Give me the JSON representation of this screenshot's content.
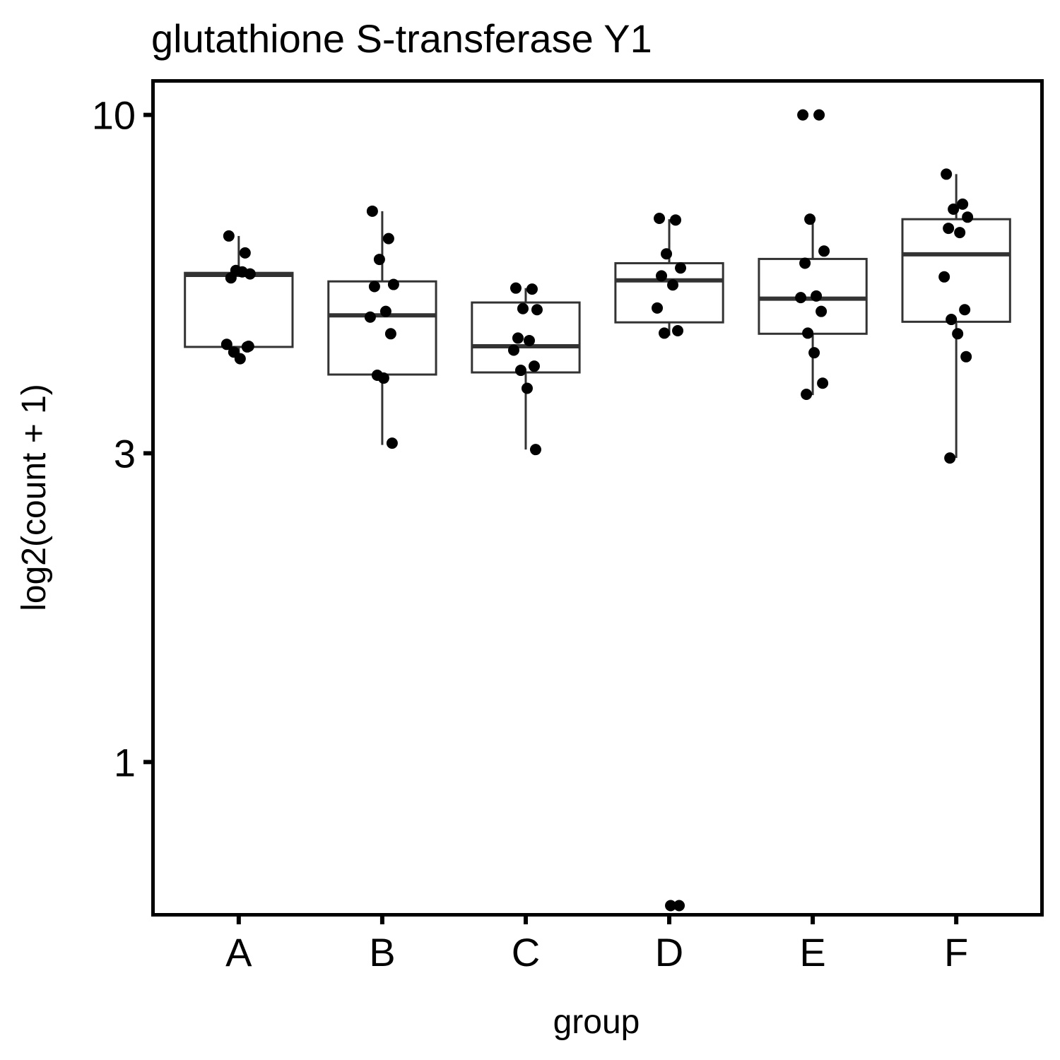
{
  "chart_data": {
    "type": "box",
    "title": "glutathione S-transferase Y1",
    "xlabel": "group",
    "ylabel": "log2(count + 1)",
    "y_scale": "log",
    "ylim": [
      0.58,
      11.3
    ],
    "y_ticks": [
      1,
      3,
      10
    ],
    "y_tick_labels": [
      "1",
      "3",
      "10"
    ],
    "categories": [
      "A",
      "B",
      "C",
      "D",
      "E",
      "F"
    ],
    "grid": false,
    "legend": "none",
    "boxes": [
      {
        "group": "A",
        "lower_whisker": 4.22,
        "q1": 4.38,
        "median": 5.66,
        "q3": 5.7,
        "upper_whisker": 6.5
      },
      {
        "group": "B",
        "lower_whisker": 3.09,
        "q1": 3.97,
        "median": 4.9,
        "q3": 5.53,
        "upper_whisker": 7.1
      },
      {
        "group": "C",
        "lower_whisker": 3.04,
        "q1": 4.0,
        "median": 4.39,
        "q3": 5.13,
        "upper_whisker": 5.4
      },
      {
        "group": "D",
        "lower_whisker": 4.56,
        "q1": 4.78,
        "median": 5.55,
        "q3": 5.9,
        "upper_whisker": 6.9
      },
      {
        "group": "E",
        "lower_whisker": 3.69,
        "q1": 4.59,
        "median": 5.2,
        "q3": 5.99,
        "upper_whisker": 6.9
      },
      {
        "group": "F",
        "lower_whisker": 2.95,
        "q1": 4.79,
        "median": 6.09,
        "q3": 6.9,
        "upper_whisker": 8.1
      }
    ],
    "points": [
      {
        "group": "A",
        "values": [
          6.5,
          6.12,
          5.75,
          5.68,
          5.6,
          5.72,
          4.42,
          4.38,
          4.3,
          4.2,
          4.39
        ]
      },
      {
        "group": "B",
        "values": [
          7.1,
          6.44,
          5.98,
          5.47,
          5.43,
          4.97,
          4.87,
          4.59,
          3.96,
          3.92,
          3.11
        ]
      },
      {
        "group": "C",
        "values": [
          5.4,
          5.38,
          5.02,
          5.0,
          4.52,
          4.48,
          4.33,
          4.09,
          4.03,
          3.78,
          3.04
        ]
      },
      {
        "group": "D",
        "values": [
          6.92,
          6.88,
          6.1,
          5.8,
          5.64,
          5.46,
          5.03,
          4.64,
          4.6,
          0.6,
          0.6
        ]
      },
      {
        "group": "E",
        "values": [
          10.0,
          10.0,
          6.9,
          6.16,
          5.9,
          5.25,
          5.22,
          4.97,
          4.6,
          4.29,
          3.85,
          3.7
        ]
      },
      {
        "group": "F",
        "values": [
          8.1,
          7.28,
          7.15,
          6.95,
          6.68,
          6.58,
          5.62,
          5.0,
          4.83,
          4.59,
          4.23,
          2.95
        ]
      }
    ]
  }
}
